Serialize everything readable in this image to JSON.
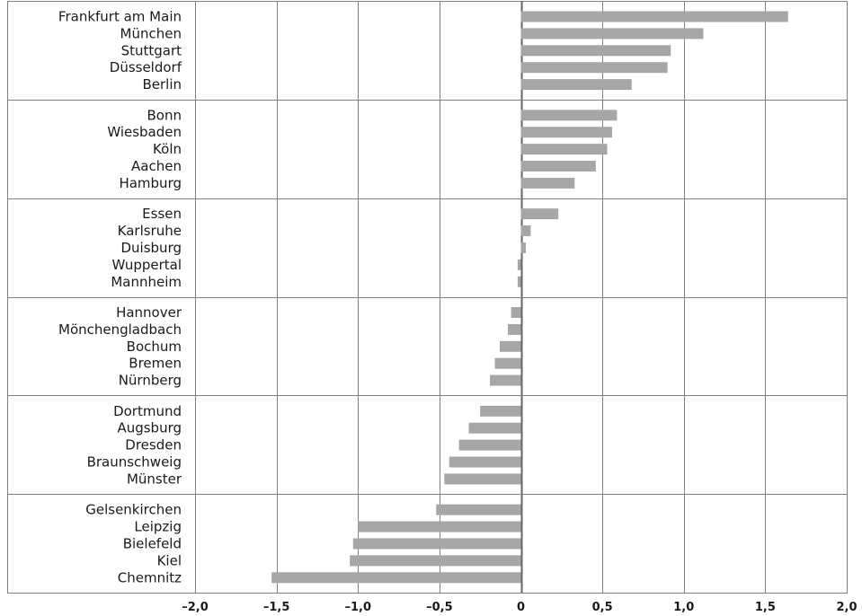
{
  "chart_data": {
    "type": "bar",
    "orientation": "horizontal",
    "categories": [
      "Frankfurt am Main",
      "München",
      "Stuttgart",
      "Düsseldorf",
      "Berlin",
      "Bonn",
      "Wiesbaden",
      "Köln",
      "Aachen",
      "Hamburg",
      "Essen",
      "Karlsruhe",
      "Duisburg",
      "Wuppertal",
      "Mannheim",
      "Hannover",
      "Mönchengladbach",
      "Bochum",
      "Bremen",
      "Nürnberg",
      "Dortmund",
      "Augsburg",
      "Dresden",
      "Braunschweig",
      "Münster",
      "Gelsenkirchen",
      "Leipzig",
      "Bielefeld",
      "Kiel",
      "Chemnitz"
    ],
    "values": [
      1.64,
      1.12,
      0.92,
      0.9,
      0.68,
      0.59,
      0.56,
      0.53,
      0.46,
      0.33,
      0.23,
      0.06,
      0.03,
      -0.02,
      -0.02,
      -0.06,
      -0.08,
      -0.13,
      -0.16,
      -0.19,
      -0.25,
      -0.32,
      -0.38,
      -0.44,
      -0.47,
      -0.52,
      -1.0,
      -1.03,
      -1.05,
      -1.53
    ],
    "groups": [
      [
        "Frankfurt am Main",
        "München",
        "Stuttgart",
        "Düsseldorf",
        "Berlin"
      ],
      [
        "Bonn",
        "Wiesbaden",
        "Köln",
        "Aachen",
        "Hamburg"
      ],
      [
        "Essen",
        "Karlsruhe",
        "Duisburg",
        "Wuppertal",
        "Mannheim"
      ],
      [
        "Hannover",
        "Mönchengladbach",
        "Bochum",
        "Bremen",
        "Nürnberg"
      ],
      [
        "Dortmund",
        "Augsburg",
        "Dresden",
        "Braunschweig",
        "Münster"
      ],
      [
        "Gelsenkirchen",
        "Leipzig",
        "Bielefeld",
        "Kiel",
        "Chemnitz"
      ]
    ],
    "xlim": [
      -2.0,
      2.0
    ],
    "xticks": [
      -2.0,
      -1.5,
      -1.0,
      -0.5,
      0,
      0.5,
      1.0,
      1.5,
      2.0
    ],
    "xtick_labels": [
      "–2,0",
      "–1,5",
      "–1,0",
      "–0,5",
      "0",
      "0,5",
      "1,0",
      "1,5",
      "2,0"
    ],
    "grid": true,
    "bar_color": "#a6a6a8",
    "grid_color": "#7f7f7f",
    "zero_line_color": "#666666",
    "title": "",
    "xlabel": "",
    "ylabel": ""
  }
}
